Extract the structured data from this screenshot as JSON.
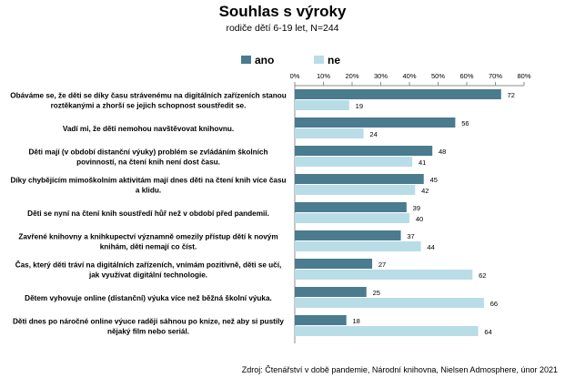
{
  "chart_data": {
    "type": "bar",
    "orientation": "horizontal",
    "title": "Souhlas s výroky",
    "subtitle": "rodiče dětí 6-19 let, N=244",
    "xlim": [
      0,
      80
    ],
    "xticks": [
      "0%",
      "10%",
      "20%",
      "30%",
      "40%",
      "50%",
      "60%",
      "70%",
      "80%"
    ],
    "legend_position": "top-left",
    "categories": [
      [
        "Obáváme se, že děti se díky času strávenému na digitálních zařízeních stanou",
        "roztěkanými a zhorší se jejich schopnost soustředit se."
      ],
      [
        "Vadí mi, že děti nemohou navštěvovat knihovnu."
      ],
      [
        "Děti mají (v období distanční výuky) problém se zvládáním školních",
        "povinností, na čtení knih není dost času."
      ],
      [
        "Díky chybějícím mimoškolním aktivitám mají dnes děti na čtení knih více času",
        "a klidu."
      ],
      [
        "Děti se nyní na čtení knih soustředí hůř než v období před pandemií."
      ],
      [
        "Zavřené knihovny a knihkupectví významně omezily přístup dětí k novým",
        "knihám, děti nemají co číst."
      ],
      [
        "Čas, který děti tráví na digitálních zařízeních, vnímám pozitivně, děti se učí,",
        "jak využívat digitální technologie."
      ],
      [
        "Dětem vyhovuje online (distanční) výuka více než běžná školní výuka."
      ],
      [
        "Děti dnes po náročné online výuce raději sáhnou po knize, než aby si pustily",
        "nějaký film nebo seriál."
      ]
    ],
    "series": [
      {
        "name": "ano",
        "color": "#4a7b8f",
        "values": [
          72,
          56,
          48,
          45,
          39,
          37,
          27,
          25,
          18
        ]
      },
      {
        "name": "ne",
        "color": "#b9dde6",
        "values": [
          19,
          24,
          41,
          42,
          40,
          44,
          62,
          66,
          64
        ]
      }
    ]
  },
  "source": "Zdroj: Čtenářství v době pandemie, Národní knihovna, Nielsen Admosphere, únor 2021"
}
